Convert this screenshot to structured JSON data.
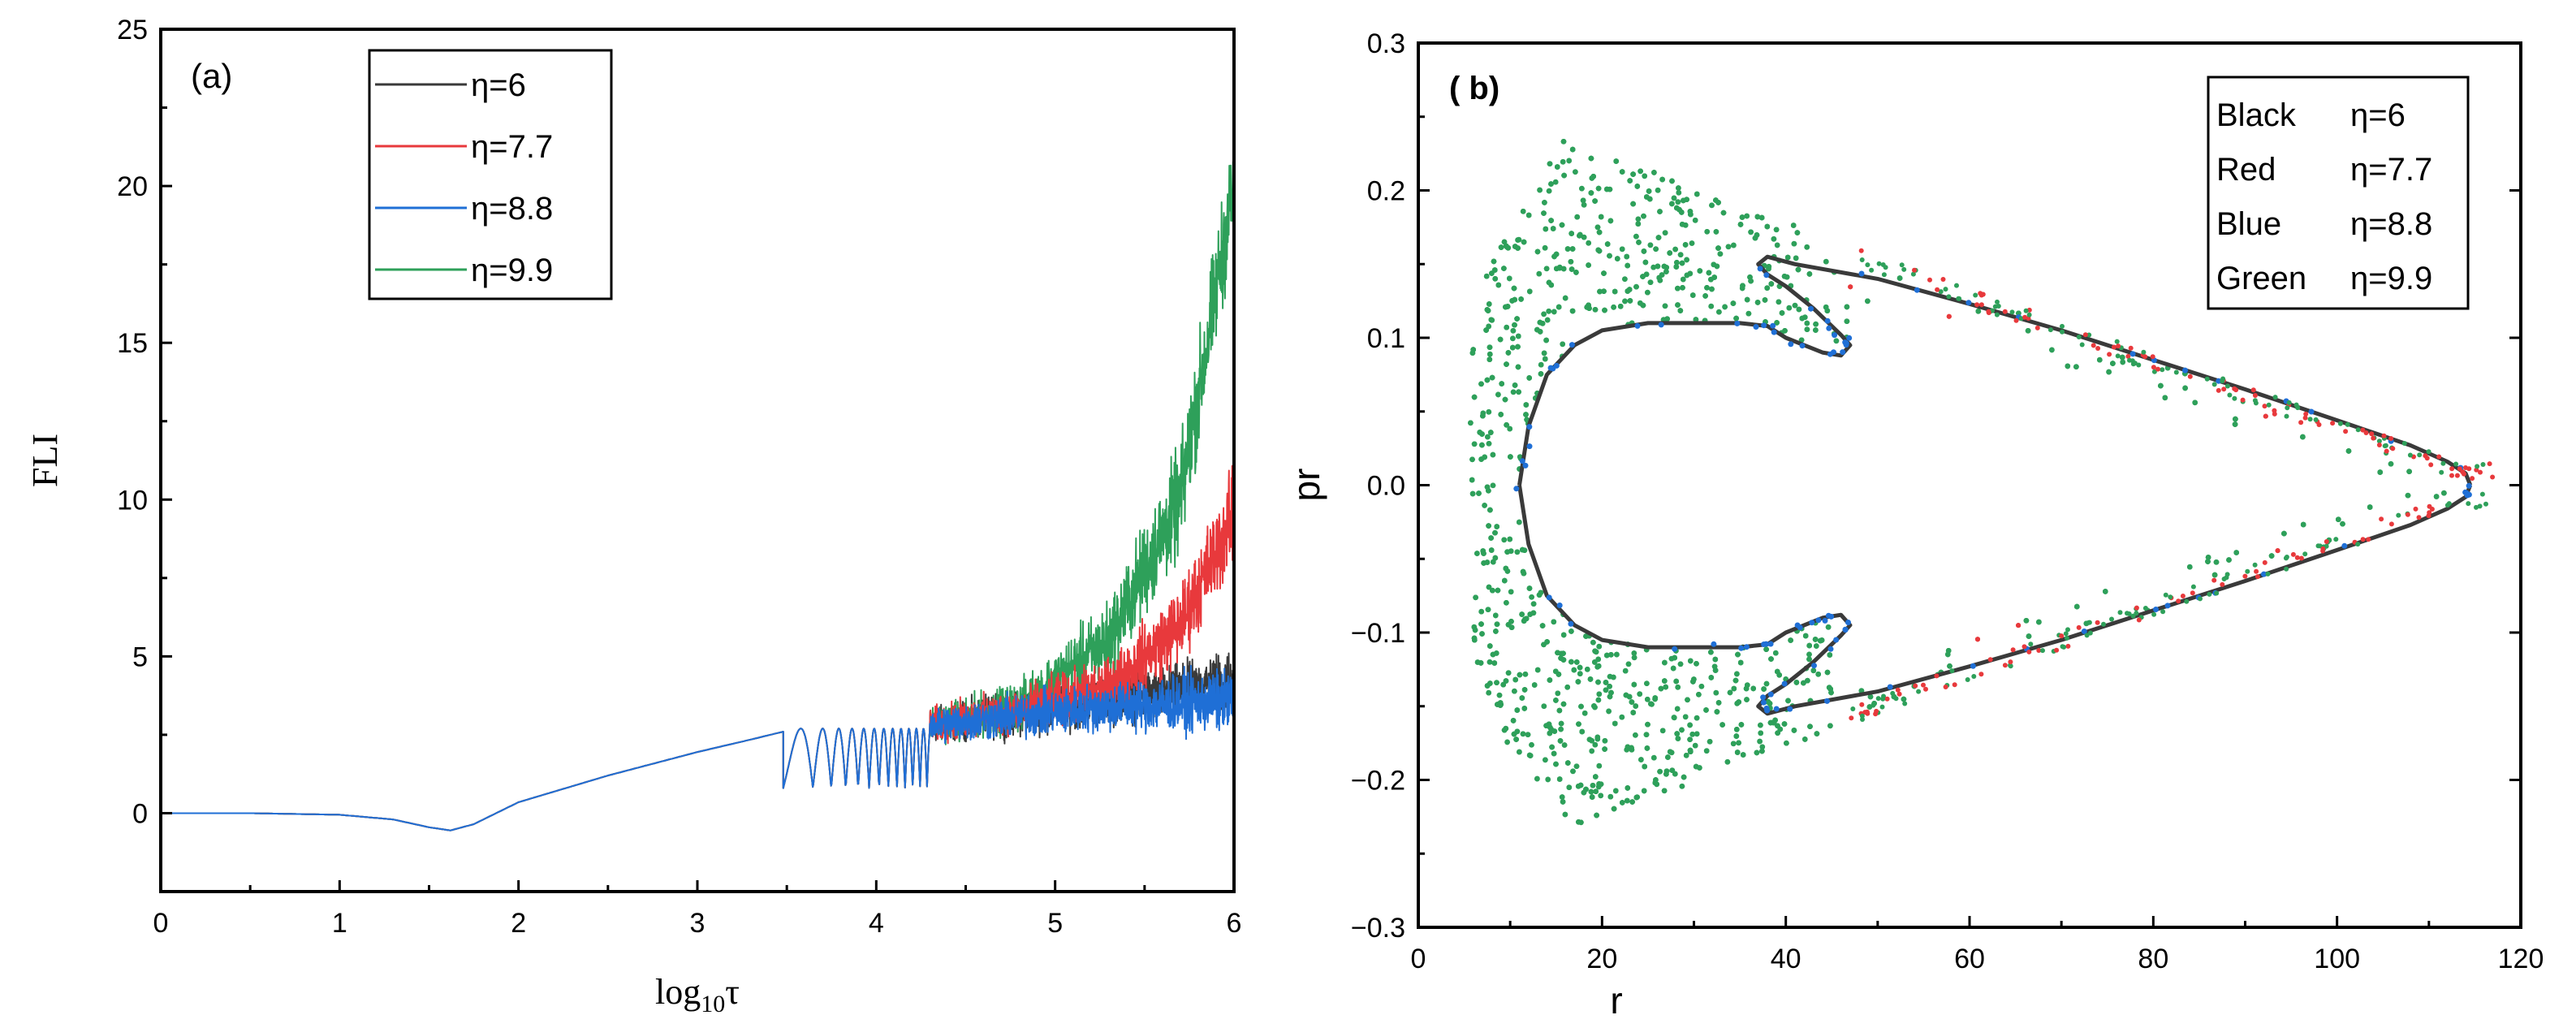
{
  "chart_data": [
    {
      "panel_label": "(a)",
      "type": "line",
      "xlabel_base": "log",
      "xlabel_sub": "10",
      "xlabel_var": "τ",
      "ylabel": "FLI",
      "xlim": [
        0,
        6
      ],
      "ylim": [
        -2.5,
        25
      ],
      "xticks": [
        0,
        1,
        2,
        3,
        4,
        5,
        6
      ],
      "yticks": [
        0,
        5,
        10,
        15,
        20,
        25
      ],
      "xtick_labels": [
        "0",
        "1",
        "2",
        "3",
        "4",
        "5",
        "6"
      ],
      "ytick_labels": [
        "0",
        "5",
        "10",
        "15",
        "20",
        "25"
      ],
      "legend_position": "top-left",
      "common_curve": {
        "x": [
          0,
          0.5,
          1.0,
          1.3,
          1.5,
          1.62,
          1.75,
          2.0,
          2.5,
          3.0,
          3.3,
          3.48
        ],
        "y": [
          0,
          0,
          -0.05,
          -0.2,
          -0.45,
          -0.55,
          -0.35,
          0.35,
          1.2,
          1.95,
          2.35,
          2.6
        ]
      },
      "series": [
        {
          "name": "η=6",
          "color": "#3a3a3a",
          "base": [
            2.8,
            3.2,
            3.6,
            3.9,
            4.3
          ],
          "amp": [
            0.8,
            1.0,
            1.1,
            1.2,
            1.4
          ]
        },
        {
          "name": "η=7.7",
          "color": "#e8393c",
          "base": [
            2.8,
            3.3,
            4.0,
            6.0,
            9.5
          ],
          "amp": [
            0.8,
            1.0,
            1.3,
            1.8,
            2.2
          ]
        },
        {
          "name": "η=8.8",
          "color": "#1f6fd6",
          "base": [
            2.8,
            3.1,
            3.4,
            3.5,
            3.6
          ],
          "amp": [
            0.8,
            1.0,
            1.1,
            1.3,
            1.4
          ]
        },
        {
          "name": "η=9.9",
          "color": "#2ea05a",
          "base": [
            2.8,
            3.4,
            5.5,
            10.0,
            20.0
          ],
          "amp": [
            0.8,
            1.1,
            1.8,
            2.5,
            2.5
          ]
        }
      ],
      "base_x": [
        4.3,
        4.8,
        5.3,
        5.7,
        6.0
      ]
    },
    {
      "panel_label": "( b)",
      "type": "scatter",
      "xlabel": "r",
      "ylabel": "pr",
      "xlim": [
        0,
        120
      ],
      "ylim": [
        -0.3,
        0.3
      ],
      "xticks": [
        0,
        20,
        40,
        60,
        80,
        100,
        120
      ],
      "yticks": [
        -0.3,
        -0.2,
        -0.1,
        0.0,
        0.1,
        0.2,
        0.3
      ],
      "xtick_labels": [
        "0",
        "20",
        "40",
        "60",
        "80",
        "100",
        "120"
      ],
      "ytick_labels": [
        "−0.3",
        "−0.2",
        "−0.1",
        "0.0",
        "0.1",
        "0.2",
        "0.3"
      ],
      "legend_position": "top-right",
      "legend": [
        {
          "color_name": "Black",
          "eta": "η=6"
        },
        {
          "color_name": "Red",
          "eta": "η=7.7"
        },
        {
          "color_name": "Blue",
          "eta": "η=8.8"
        },
        {
          "color_name": "Green",
          "eta": "η=9.9"
        }
      ],
      "series_colors": {
        "black": "#3a3a3a",
        "red": "#e8393c",
        "blue": "#1f6fd6",
        "green": "#2ea05a"
      },
      "black_curve_upper": {
        "r": [
          11,
          12,
          14,
          17,
          20,
          25,
          30,
          35,
          38,
          40,
          42,
          44,
          46,
          47,
          46,
          43,
          40,
          38,
          37,
          38,
          41,
          50,
          60,
          70,
          80,
          90,
          100,
          108,
          112,
          114,
          114.5
        ],
        "pr": [
          0.0,
          0.04,
          0.075,
          0.095,
          0.105,
          0.11,
          0.11,
          0.11,
          0.108,
          0.1,
          0.095,
          0.09,
          0.088,
          0.095,
          0.102,
          0.12,
          0.135,
          0.143,
          0.15,
          0.155,
          0.15,
          0.14,
          0.123,
          0.105,
          0.085,
          0.065,
          0.044,
          0.027,
          0.016,
          0.008,
          0.0
        ]
      }
    }
  ]
}
